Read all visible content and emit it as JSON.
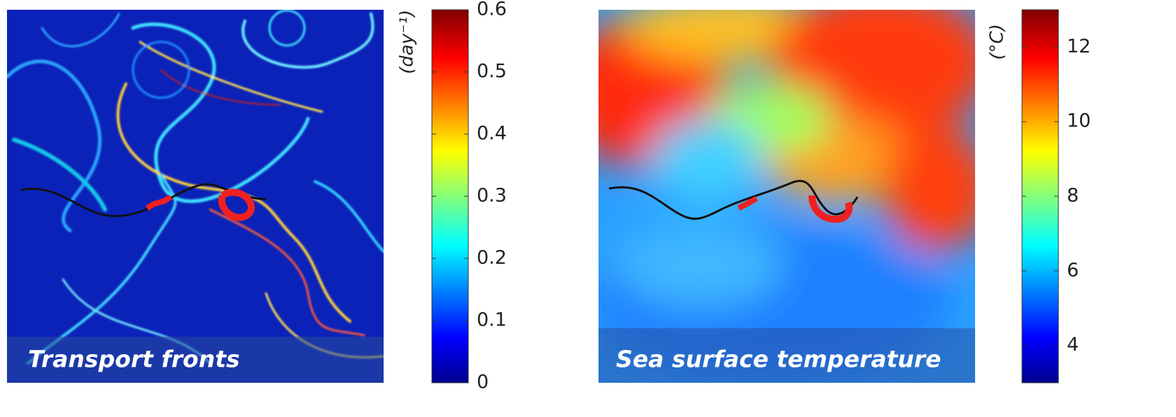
{
  "chart_data": [
    {
      "type": "heatmap",
      "title": "Transport fronts",
      "colorbar_label": "(day⁻¹)",
      "clim": [
        0,
        0.6
      ],
      "cticks": [
        0,
        0.1,
        0.2,
        0.3,
        0.4,
        0.5,
        0.6
      ]
    },
    {
      "type": "heatmap",
      "title": "Sea surface temperature",
      "colorbar_label": "(°C)",
      "clim": [
        3,
        13
      ],
      "cticks": [
        4,
        6,
        8,
        10,
        12
      ]
    }
  ]
}
